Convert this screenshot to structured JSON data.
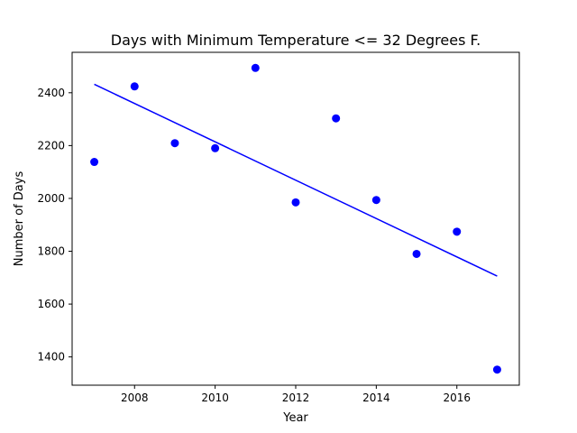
{
  "chart_data": {
    "type": "scatter",
    "title": "Days with Minimum Temperature <= 32 Degrees F.",
    "xlabel": "Year",
    "ylabel": "Number of Days",
    "x": [
      2007,
      2008,
      2009,
      2010,
      2011,
      2012,
      2013,
      2014,
      2015,
      2016,
      2017
    ],
    "y": [
      2138,
      2424,
      2209,
      2190,
      2494,
      1985,
      2303,
      1994,
      1790,
      1874,
      1352
    ],
    "trendline": {
      "x": [
        2007,
        2017
      ],
      "y": [
        2432,
        1706
      ]
    },
    "xlim": [
      2006.45,
      2017.55
    ],
    "ylim": [
      1293,
      2553
    ],
    "x_ticks": [
      2008,
      2010,
      2012,
      2014,
      2016
    ],
    "y_ticks": [
      1400,
      1600,
      1800,
      2000,
      2200,
      2400
    ],
    "grid": false,
    "legend": "none",
    "colors": {
      "points": "#0000ff",
      "line": "#0000ff",
      "axes": "#000000"
    }
  }
}
